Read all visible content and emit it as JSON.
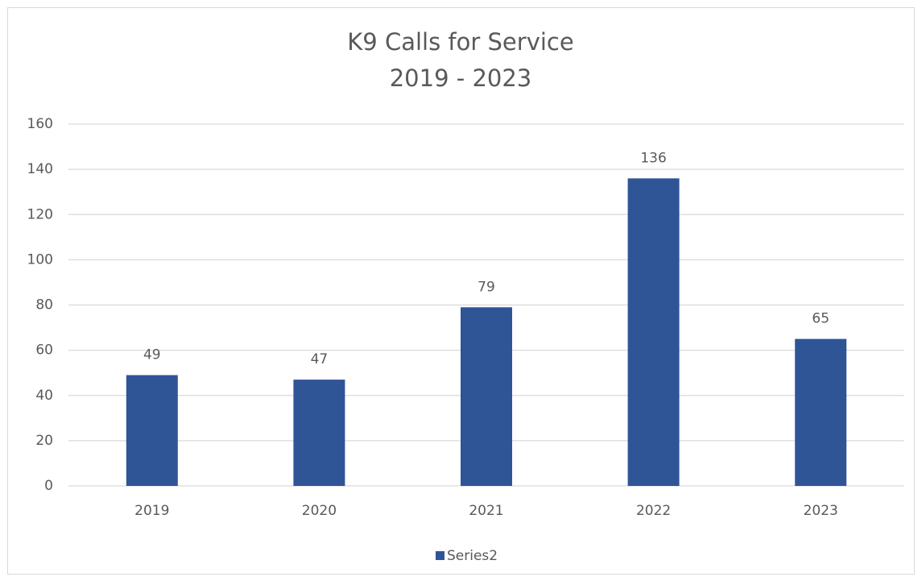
{
  "chart_data": {
    "type": "bar",
    "title": "K9 Calls for Service",
    "subtitle": "2019 - 2023",
    "categories": [
      "2019",
      "2020",
      "2021",
      "2022",
      "2023"
    ],
    "series": [
      {
        "name": "Series2",
        "color": "#2f5597",
        "values": [
          49,
          47,
          79,
          136,
          65
        ]
      }
    ],
    "ylim": [
      0,
      160
    ],
    "yticks": [
      0,
      20,
      40,
      60,
      80,
      100,
      120,
      140,
      160
    ],
    "grid": true,
    "legend": "bottom"
  }
}
